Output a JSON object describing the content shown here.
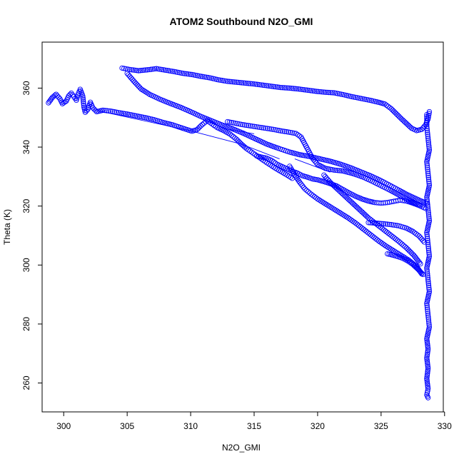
{
  "chart_data": {
    "type": "scatter",
    "title": "ATOM2 Southbound N2O_GMI",
    "xlabel": "N2O_GMI",
    "ylabel": "Theta (K)",
    "xlim": [
      298.3,
      329.9
    ],
    "ylim": [
      250.2,
      375.6
    ],
    "xticks": [
      300,
      305,
      310,
      315,
      320,
      325,
      330
    ],
    "yticks": [
      260,
      280,
      300,
      320,
      340,
      360
    ],
    "grid": false,
    "legend": "none",
    "point_color": "#0000ff",
    "marker": "open-circle",
    "series": [
      {
        "points": [
          [
            304.6,
            366.8
          ],
          [
            305.2,
            366.3
          ],
          [
            305.9,
            365.9
          ],
          [
            306.6,
            366.2
          ],
          [
            307.3,
            366.6
          ],
          [
            308.0,
            366.1
          ],
          [
            308.7,
            365.6
          ],
          [
            309.4,
            365.0
          ],
          [
            310.1,
            364.6
          ],
          [
            310.8,
            364.0
          ],
          [
            311.5,
            363.5
          ],
          [
            312.2,
            362.8
          ],
          [
            312.9,
            362.3
          ],
          [
            313.6,
            362.0
          ],
          [
            314.3,
            361.7
          ],
          [
            315.0,
            361.4
          ],
          [
            315.7,
            361.0
          ],
          [
            316.4,
            360.6
          ],
          [
            317.1,
            360.2
          ],
          [
            317.8,
            360.0
          ],
          [
            318.5,
            359.7
          ],
          [
            319.2,
            359.3
          ],
          [
            319.9,
            358.9
          ],
          [
            320.6,
            358.6
          ],
          [
            321.3,
            358.4
          ],
          [
            322.0,
            357.8
          ],
          [
            322.7,
            357.1
          ],
          [
            323.4,
            356.5
          ],
          [
            324.1,
            355.9
          ],
          [
            324.8,
            355.2
          ],
          [
            325.3,
            354.6
          ],
          [
            325.8,
            353.0
          ],
          [
            326.2,
            351.3
          ],
          [
            326.6,
            349.6
          ],
          [
            327.0,
            348.0
          ],
          [
            327.4,
            346.4
          ],
          [
            327.8,
            345.6
          ],
          [
            328.2,
            346.0
          ],
          [
            328.5,
            347.5
          ],
          [
            328.7,
            349.5
          ],
          [
            328.8,
            352.0
          ]
        ]
      },
      {
        "points": [
          [
            305.0,
            365.0
          ],
          [
            305.6,
            362.0
          ],
          [
            306.1,
            359.7
          ],
          [
            306.8,
            357.8
          ],
          [
            307.6,
            356.2
          ],
          [
            308.4,
            354.8
          ],
          [
            309.2,
            353.5
          ],
          [
            310.0,
            352.0
          ],
          [
            310.8,
            350.4
          ],
          [
            311.6,
            349.0
          ],
          [
            312.4,
            347.6
          ],
          [
            313.3,
            346.2
          ],
          [
            314.2,
            344.6
          ],
          [
            315.1,
            342.8
          ],
          [
            316.0,
            341.0
          ],
          [
            316.9,
            339.6
          ],
          [
            317.8,
            338.3
          ],
          [
            318.6,
            337.4
          ],
          [
            319.4,
            336.8
          ],
          [
            320.2,
            336.0
          ],
          [
            321.0,
            335.2
          ],
          [
            321.8,
            334.2
          ],
          [
            322.6,
            333.0
          ],
          [
            323.4,
            331.6
          ],
          [
            324.2,
            330.2
          ],
          [
            325.0,
            328.6
          ],
          [
            325.7,
            327.0
          ],
          [
            326.4,
            325.4
          ],
          [
            327.0,
            324.0
          ],
          [
            327.6,
            322.8
          ],
          [
            328.1,
            321.8
          ],
          [
            328.6,
            321.0
          ]
        ]
      },
      {
        "points": [
          [
            298.8,
            355.0
          ],
          [
            299.1,
            356.8
          ],
          [
            299.4,
            357.9
          ],
          [
            299.7,
            356.4
          ],
          [
            299.9,
            354.7
          ],
          [
            300.2,
            355.6
          ],
          [
            300.4,
            357.4
          ],
          [
            300.6,
            358.3
          ],
          [
            300.8,
            357.1
          ],
          [
            301.0,
            355.9
          ],
          [
            301.1,
            357.6
          ],
          [
            301.3,
            359.6
          ],
          [
            301.5,
            357.3
          ],
          [
            301.6,
            353.5
          ],
          [
            301.7,
            351.8
          ],
          [
            301.9,
            352.8
          ],
          [
            302.1,
            355.2
          ],
          [
            302.3,
            353.3
          ],
          [
            302.6,
            352.0
          ],
          [
            303.1,
            352.5
          ],
          [
            303.7,
            352.2
          ],
          [
            304.3,
            351.7
          ],
          [
            305.0,
            351.2
          ],
          [
            305.7,
            350.6
          ],
          [
            306.4,
            350.0
          ],
          [
            307.1,
            349.3
          ],
          [
            307.8,
            348.4
          ],
          [
            308.6,
            347.5
          ],
          [
            309.3,
            346.5
          ],
          [
            310.1,
            345.4
          ],
          [
            310.5,
            345.9
          ],
          [
            310.8,
            347.2
          ],
          [
            311.3,
            349.0
          ],
          [
            311.7,
            347.8
          ],
          [
            312.1,
            346.6
          ],
          [
            312.6,
            345.6
          ],
          [
            313.1,
            344.4
          ],
          [
            313.6,
            342.7
          ],
          [
            314.0,
            341.0
          ],
          [
            314.4,
            339.5
          ],
          [
            314.8,
            338.3
          ],
          [
            315.2,
            337.1
          ],
          [
            315.6,
            335.9
          ],
          [
            316.0,
            334.7
          ],
          [
            316.4,
            333.6
          ],
          [
            316.8,
            332.5
          ],
          [
            317.2,
            331.5
          ],
          [
            317.6,
            330.5
          ],
          [
            318.0,
            329.4
          ]
        ]
      },
      {
        "points": [
          [
            312.9,
            348.6
          ],
          [
            313.5,
            348.1
          ],
          [
            314.1,
            347.6
          ],
          [
            314.7,
            347.2
          ],
          [
            315.3,
            346.8
          ],
          [
            315.9,
            346.4
          ],
          [
            316.5,
            346.0
          ],
          [
            317.1,
            345.5
          ],
          [
            317.7,
            345.1
          ],
          [
            318.3,
            344.6
          ],
          [
            318.7,
            343.4
          ],
          [
            319.0,
            341.0
          ],
          [
            319.3,
            338.6
          ],
          [
            319.6,
            336.2
          ],
          [
            320.0,
            334.1
          ],
          [
            320.6,
            332.8
          ],
          [
            321.3,
            332.2
          ],
          [
            322.0,
            331.9
          ],
          [
            322.8,
            331.0
          ],
          [
            323.6,
            329.8
          ],
          [
            324.3,
            328.4
          ],
          [
            325.0,
            326.9
          ],
          [
            325.7,
            325.4
          ],
          [
            326.3,
            324.0
          ],
          [
            326.9,
            322.6
          ],
          [
            327.5,
            321.2
          ],
          [
            328.1,
            320.0
          ],
          [
            328.5,
            319.2
          ]
        ]
      },
      {
        "points": [
          [
            315.2,
            337.0
          ],
          [
            315.6,
            336.6
          ],
          [
            316.0,
            336.2
          ],
          [
            316.4,
            335.4
          ],
          [
            316.8,
            334.2
          ],
          [
            317.2,
            333.4
          ],
          [
            317.6,
            332.6
          ],
          [
            318.0,
            331.8
          ],
          [
            318.4,
            331.2
          ],
          [
            318.8,
            330.3
          ],
          [
            319.2,
            329.8
          ],
          [
            319.6,
            329.2
          ],
          [
            320.0,
            328.9
          ],
          [
            320.5,
            328.3
          ],
          [
            321.0,
            327.6
          ],
          [
            321.5,
            326.8
          ],
          [
            322.0,
            325.6
          ],
          [
            322.5,
            324.4
          ],
          [
            323.0,
            323.3
          ],
          [
            323.5,
            322.4
          ],
          [
            324.0,
            321.7
          ],
          [
            324.5,
            321.2
          ],
          [
            325.0,
            321.0
          ],
          [
            325.5,
            321.2
          ],
          [
            326.0,
            321.6
          ],
          [
            326.5,
            322.0
          ],
          [
            327.0,
            321.7
          ],
          [
            327.5,
            321.0
          ],
          [
            328.0,
            320.2
          ]
        ]
      },
      {
        "points": [
          [
            317.8,
            333.5
          ],
          [
            318.2,
            330.5
          ],
          [
            318.6,
            328.0
          ],
          [
            319.0,
            325.8
          ],
          [
            319.5,
            324.0
          ],
          [
            320.0,
            322.4
          ],
          [
            320.6,
            320.8
          ],
          [
            321.2,
            319.2
          ],
          [
            321.8,
            317.6
          ],
          [
            322.4,
            316.0
          ],
          [
            323.0,
            314.2
          ],
          [
            323.6,
            312.2
          ],
          [
            324.2,
            310.2
          ],
          [
            324.8,
            308.2
          ],
          [
            325.4,
            306.4
          ],
          [
            326.0,
            304.8
          ],
          [
            326.6,
            303.2
          ],
          [
            327.2,
            301.6
          ],
          [
            327.8,
            299.5
          ],
          [
            328.2,
            297.0
          ]
        ]
      },
      {
        "points": [
          [
            320.5,
            330.5
          ],
          [
            321.0,
            328.0
          ],
          [
            321.6,
            325.6
          ],
          [
            322.2,
            323.2
          ],
          [
            322.8,
            320.8
          ],
          [
            323.4,
            318.4
          ],
          [
            324.0,
            316.0
          ],
          [
            324.6,
            314.0
          ],
          [
            325.2,
            312.0
          ],
          [
            325.8,
            310.0
          ],
          [
            326.4,
            308.0
          ],
          [
            327.0,
            305.8
          ],
          [
            327.6,
            303.2
          ],
          [
            328.1,
            300.4
          ]
        ]
      },
      {
        "points": [
          [
            324.0,
            314.4
          ],
          [
            324.6,
            314.2
          ],
          [
            325.2,
            314.0
          ],
          [
            325.8,
            313.7
          ],
          [
            326.4,
            313.3
          ],
          [
            327.0,
            312.5
          ],
          [
            327.5,
            311.4
          ],
          [
            328.0,
            309.8
          ],
          [
            328.4,
            307.8
          ]
        ]
      },
      {
        "points": [
          [
            325.5,
            303.8
          ],
          [
            325.9,
            303.4
          ],
          [
            326.3,
            302.9
          ],
          [
            326.7,
            302.3
          ],
          [
            327.1,
            301.4
          ],
          [
            327.5,
            300.2
          ],
          [
            327.9,
            298.6
          ],
          [
            328.3,
            296.8
          ]
        ]
      },
      {
        "points": [
          [
            328.6,
            351.0
          ],
          [
            328.6,
            347.0
          ],
          [
            328.7,
            343.0
          ],
          [
            328.8,
            339.0
          ],
          [
            328.6,
            335.0
          ],
          [
            328.7,
            331.0
          ],
          [
            328.8,
            327.0
          ],
          [
            328.6,
            323.0
          ],
          [
            328.7,
            319.0
          ],
          [
            328.8,
            315.0
          ],
          [
            328.6,
            311.0
          ],
          [
            328.7,
            307.0
          ],
          [
            328.8,
            303.0
          ],
          [
            328.6,
            299.0
          ],
          [
            328.7,
            295.0
          ],
          [
            328.8,
            291.0
          ],
          [
            328.6,
            287.0
          ],
          [
            328.7,
            283.0
          ],
          [
            328.8,
            279.0
          ],
          [
            328.6,
            275.0
          ],
          [
            328.7,
            271.5
          ],
          [
            328.6,
            268.5
          ],
          [
            328.7,
            265.0
          ],
          [
            328.6,
            261.5
          ],
          [
            328.7,
            258.0
          ],
          [
            328.6,
            256.0
          ],
          [
            328.7,
            255.0
          ]
        ]
      }
    ],
    "line_segments": [
      [
        [
          302.6,
          352.4
        ],
        [
          310.0,
          345.5
        ]
      ],
      [
        [
          310.0,
          345.5
        ],
        [
          314.0,
          341.0
        ]
      ],
      [
        [
          314.0,
          341.0
        ],
        [
          317.0,
          336.0
        ]
      ],
      [
        [
          318.2,
          336.0
        ],
        [
          321.0,
          331.5
        ]
      ],
      [
        [
          313.0,
          346.0
        ],
        [
          315.0,
          344.5
        ]
      ]
    ]
  }
}
